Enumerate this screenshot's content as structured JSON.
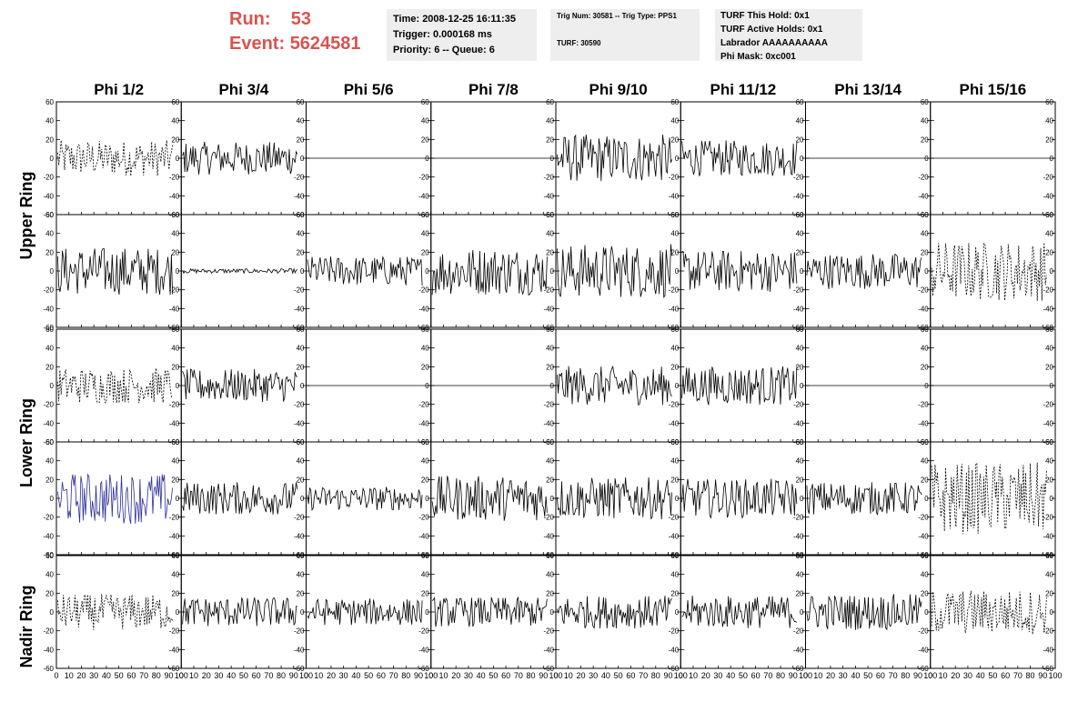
{
  "header": {
    "run_label": "Run:",
    "run_value": "53",
    "event_label": "Event:",
    "event_value": "5624581"
  },
  "info_time": {
    "time": "Time: 2008-12-25 16:11:35",
    "trigger": "Trigger: 0.000168 ms",
    "priority": "Priority: 6 -- Queue: 6"
  },
  "info_trig": {
    "trig": "Trig Num: 30581 -- Trig Type: PPS1",
    "turf": "TURF: 30590"
  },
  "info_turf": {
    "hold": "TURF This Hold: 0x1",
    "active": "TURF Active Holds: 0x1",
    "labrador": "Labrador AAAAAAAAAA",
    "mask": "Phi Mask: 0xc001"
  },
  "chart_data": {
    "type": "line",
    "columns": [
      "Phi 1/2",
      "Phi 3/4",
      "Phi 5/6",
      "Phi 7/8",
      "Phi 9/10",
      "Phi 11/12",
      "Phi 13/14",
      "Phi 15/16"
    ],
    "row_groups": [
      "Upper Ring",
      "Lower Ring",
      "Nadir Ring"
    ],
    "xlim": [
      0,
      100
    ],
    "ylim": [
      -60,
      60
    ],
    "x_ticks": [
      "0",
      "10",
      "20",
      "30",
      "40",
      "50",
      "60",
      "70",
      "80",
      "90",
      "100"
    ],
    "y_ticks": [
      "60",
      "40",
      "20",
      "0",
      "-20",
      "-40",
      "-60"
    ],
    "waveform_length": 100,
    "colors": {
      "line": "#000000",
      "highlight": "#2b2f96",
      "frame": "#000000"
    },
    "panels": [
      [
        {
          "amp": 12,
          "style": "dashed"
        },
        {
          "amp": 11,
          "style": "solid"
        },
        {
          "amp": 0,
          "style": "flat"
        },
        {
          "amp": 0,
          "style": "flat"
        },
        {
          "amp": 16,
          "style": "solid"
        },
        {
          "amp": 12,
          "style": "solid"
        },
        {
          "amp": 0,
          "style": "flat"
        },
        {
          "amp": 0,
          "style": "flat"
        }
      ],
      [
        {
          "amp": 16,
          "style": "solid"
        },
        {
          "amp": 1.5,
          "style": "solid"
        },
        {
          "amp": 10,
          "style": "solid"
        },
        {
          "amp": 16,
          "style": "solid"
        },
        {
          "amp": 18,
          "style": "solid"
        },
        {
          "amp": 14,
          "style": "solid"
        },
        {
          "amp": 12,
          "style": "solid"
        },
        {
          "amp": 20,
          "style": "dashed"
        }
      ],
      [
        {
          "amp": 12,
          "style": "dashed"
        },
        {
          "amp": 11,
          "style": "solid"
        },
        {
          "amp": 0,
          "style": "flat"
        },
        {
          "amp": 0,
          "style": "flat"
        },
        {
          "amp": 13,
          "style": "solid"
        },
        {
          "amp": 13,
          "style": "solid"
        },
        {
          "amp": 0,
          "style": "flat"
        },
        {
          "amp": 0,
          "style": "flat"
        }
      ],
      [
        {
          "amp": 17,
          "style": "blue"
        },
        {
          "amp": 11,
          "style": "solid"
        },
        {
          "amp": 8,
          "style": "solid"
        },
        {
          "amp": 15,
          "style": "solid"
        },
        {
          "amp": 14,
          "style": "solid"
        },
        {
          "amp": 13,
          "style": "solid"
        },
        {
          "amp": 11,
          "style": "solid"
        },
        {
          "amp": 24,
          "style": "dashed"
        }
      ],
      [
        {
          "amp": 12,
          "style": "dashed"
        },
        {
          "amp": 10,
          "style": "solid"
        },
        {
          "amp": 9,
          "style": "solid"
        },
        {
          "amp": 10,
          "style": "solid"
        },
        {
          "amp": 11,
          "style": "solid"
        },
        {
          "amp": 11,
          "style": "solid"
        },
        {
          "amp": 12,
          "style": "solid"
        },
        {
          "amp": 15,
          "style": "dashed"
        }
      ]
    ]
  }
}
